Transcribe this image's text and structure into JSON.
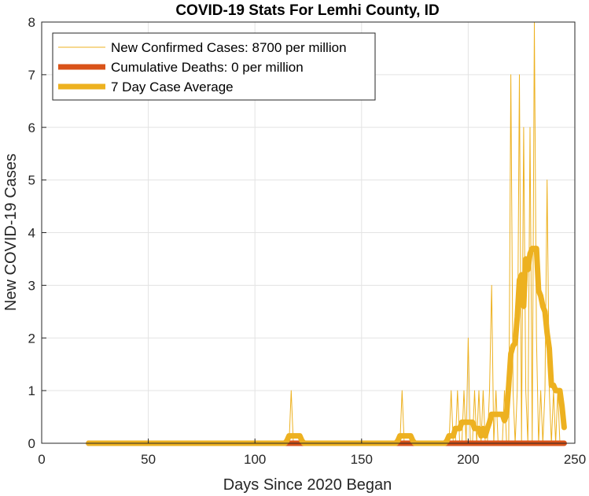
{
  "chart_data": {
    "type": "line",
    "title": "COVID-19 Stats For Lemhi County, ID",
    "xlabel": "Days Since 2020 Began",
    "ylabel": "New COVID-19 Cases",
    "xlim": [
      0,
      250
    ],
    "ylim": [
      0,
      8
    ],
    "xticks": [
      "0",
      "50",
      "100",
      "150",
      "200",
      "250"
    ],
    "yticks": [
      "0",
      "1",
      "2",
      "3",
      "4",
      "5",
      "6",
      "7",
      "8"
    ],
    "grid": true,
    "legend_position": "top-left",
    "series": [
      {
        "name": "New Confirmed Cases: 8700 per million",
        "color": "#EDB120",
        "style": "thin",
        "points": [
          [
            22,
            0
          ],
          [
            116,
            0
          ],
          [
            117,
            1
          ],
          [
            118,
            0
          ],
          [
            168,
            0
          ],
          [
            169,
            1
          ],
          [
            170,
            0
          ],
          [
            191,
            0
          ],
          [
            192,
            1
          ],
          [
            193,
            0
          ],
          [
            194,
            0
          ],
          [
            195,
            1
          ],
          [
            196,
            0
          ],
          [
            197,
            0
          ],
          [
            198,
            1
          ],
          [
            199,
            0
          ],
          [
            200,
            2
          ],
          [
            201,
            0
          ],
          [
            202,
            0
          ],
          [
            203,
            1
          ],
          [
            204,
            0
          ],
          [
            205,
            1
          ],
          [
            206,
            0
          ],
          [
            207,
            1
          ],
          [
            208,
            0
          ],
          [
            209,
            0
          ],
          [
            210,
            1
          ],
          [
            211,
            3
          ],
          [
            212,
            0
          ],
          [
            213,
            1
          ],
          [
            214,
            0
          ],
          [
            215,
            0
          ],
          [
            216,
            0
          ],
          [
            217,
            1
          ],
          [
            218,
            0
          ],
          [
            219,
            0
          ],
          [
            220,
            7
          ],
          [
            221,
            1
          ],
          [
            222,
            0
          ],
          [
            223,
            1
          ],
          [
            224,
            7
          ],
          [
            225,
            0
          ],
          [
            226,
            6
          ],
          [
            227,
            1
          ],
          [
            228,
            0
          ],
          [
            229,
            6
          ],
          [
            230,
            0
          ],
          [
            231,
            8
          ],
          [
            232,
            2
          ],
          [
            233,
            0
          ],
          [
            234,
            1
          ],
          [
            235,
            0
          ],
          [
            236,
            1
          ],
          [
            237,
            5
          ],
          [
            238,
            1
          ],
          [
            239,
            0
          ],
          [
            240,
            1
          ],
          [
            241,
            0
          ],
          [
            242,
            1
          ],
          [
            243,
            0
          ],
          [
            244,
            0
          ],
          [
            245,
            0
          ]
        ]
      },
      {
        "name": "Cumulative Deaths: 0 per million",
        "color": "#D95319",
        "style": "thick",
        "points": [
          [
            22,
            0
          ],
          [
            245,
            0
          ]
        ]
      },
      {
        "name": "7 Day Case Average",
        "color": "#EDB120",
        "style": "thick",
        "points": [
          [
            22,
            0
          ],
          [
            114,
            0
          ],
          [
            115,
            0.05
          ],
          [
            116,
            0.14
          ],
          [
            121,
            0.14
          ],
          [
            122,
            0.05
          ],
          [
            123,
            0
          ],
          [
            166,
            0
          ],
          [
            167,
            0.05
          ],
          [
            168,
            0.14
          ],
          [
            173,
            0.14
          ],
          [
            174,
            0.05
          ],
          [
            175,
            0
          ],
          [
            189,
            0
          ],
          [
            190,
            0.05
          ],
          [
            191,
            0.14
          ],
          [
            193,
            0.14
          ],
          [
            194,
            0.28
          ],
          [
            196,
            0.28
          ],
          [
            197,
            0.4
          ],
          [
            202,
            0.4
          ],
          [
            203,
            0.28
          ],
          [
            205,
            0.28
          ],
          [
            206,
            0.14
          ],
          [
            207,
            0.28
          ],
          [
            208,
            0.14
          ],
          [
            209,
            0.28
          ],
          [
            210,
            0.4
          ],
          [
            211,
            0.55
          ],
          [
            216,
            0.55
          ],
          [
            217,
            0.43
          ],
          [
            218,
            0.55
          ],
          [
            219,
            1.1
          ],
          [
            220,
            1.7
          ],
          [
            221,
            1.85
          ],
          [
            222,
            1.9
          ],
          [
            223,
            2.4
          ],
          [
            224,
            3.1
          ],
          [
            225,
            3.2
          ],
          [
            226,
            2.6
          ],
          [
            227,
            3.5
          ],
          [
            228,
            3.3
          ],
          [
            229,
            3.6
          ],
          [
            230,
            3.7
          ],
          [
            232,
            3.7
          ],
          [
            233,
            2.9
          ],
          [
            234,
            2.8
          ],
          [
            235,
            2.6
          ],
          [
            236,
            2.5
          ],
          [
            237,
            2.1
          ],
          [
            238,
            1.8
          ],
          [
            239,
            1.1
          ],
          [
            240,
            1.1
          ],
          [
            241,
            1.0
          ],
          [
            243,
            1.0
          ],
          [
            244,
            0.7
          ],
          [
            245,
            0.3
          ]
        ]
      }
    ]
  }
}
